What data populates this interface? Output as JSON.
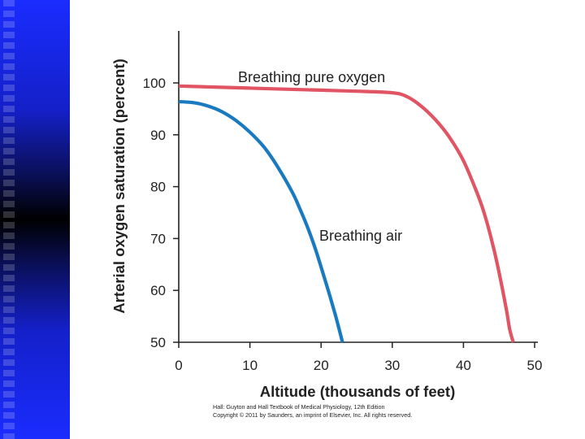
{
  "chart_data": {
    "type": "line",
    "title": "",
    "xlabel": "Altitude (thousands of feet)",
    "ylabel": "Arterial oxygen saturation (percent)",
    "xlim": [
      0,
      50
    ],
    "ylim": [
      50,
      100
    ],
    "xticks": [
      "0",
      "10",
      "20",
      "30",
      "40",
      "50"
    ],
    "yticks": [
      "50",
      "60",
      "70",
      "80",
      "90",
      "100"
    ],
    "grid": false,
    "series": [
      {
        "name": "Breathing pure oxygen",
        "color": "#e05463",
        "x": [
          0,
          5,
          10,
          15,
          20,
          25,
          30,
          32,
          34,
          36,
          38,
          40,
          42,
          43,
          44,
          45,
          46,
          46.5,
          47
        ],
        "y": [
          99.4,
          99.2,
          99.0,
          98.8,
          98.6,
          98.4,
          98.1,
          97.4,
          95.6,
          93.0,
          89.6,
          85.0,
          78.5,
          74.5,
          69.5,
          63.5,
          56.5,
          52.5,
          50.0
        ]
      },
      {
        "name": "Breathing air",
        "color": "#1a7ac0",
        "x": [
          0,
          2,
          4,
          6,
          8,
          10,
          12,
          14,
          16,
          17,
          18,
          19,
          20,
          21,
          22,
          22.5,
          23
        ],
        "y": [
          96.4,
          96.2,
          95.6,
          94.5,
          92.8,
          90.5,
          87.6,
          83.6,
          78.8,
          75.8,
          72.5,
          68.8,
          64.5,
          60.0,
          55.3,
          52.7,
          50.0
        ]
      }
    ]
  },
  "credit": {
    "line1": "Hall: Guyton and Hall Textbook of Medical Physiology, 12th Edition",
    "line2": "Copyright © 2011 by Saunders, an imprint of Elsevier, Inc. All rights reserved."
  }
}
